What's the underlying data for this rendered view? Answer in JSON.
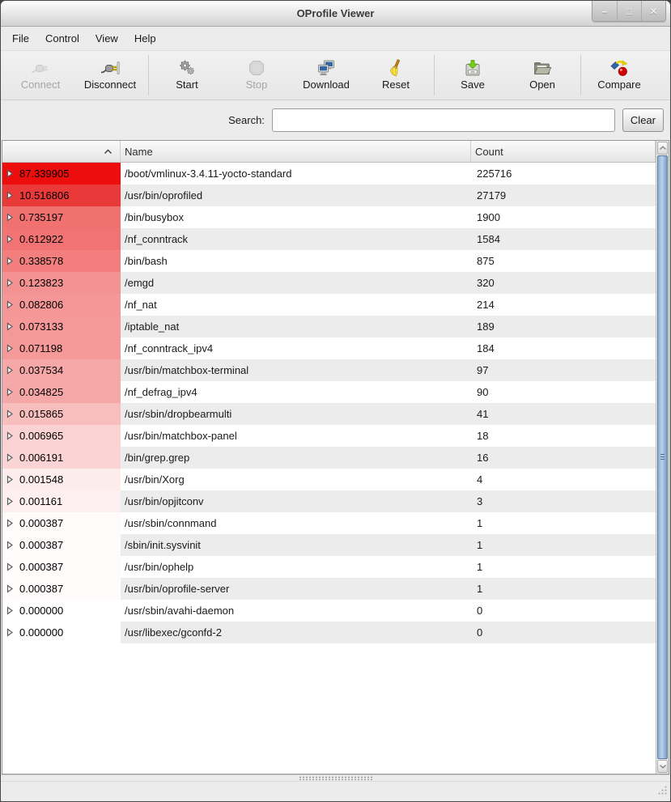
{
  "window": {
    "title": "OProfile Viewer",
    "controls": [
      {
        "name": "minimize",
        "glyph": "–"
      },
      {
        "name": "maximize",
        "glyph": "□"
      },
      {
        "name": "close",
        "glyph": "✕"
      }
    ]
  },
  "menu": {
    "items": [
      "File",
      "Control",
      "View",
      "Help"
    ]
  },
  "toolbar": {
    "groups": [
      [
        {
          "label": "Connect",
          "icon": "connect-plug-icon",
          "enabled": false
        },
        {
          "label": "Disconnect",
          "icon": "disconnect-plug-icon",
          "enabled": true
        }
      ],
      [
        {
          "label": "Start",
          "icon": "gears-icon",
          "enabled": true
        },
        {
          "label": "Stop",
          "icon": "stop-octagon-icon",
          "enabled": false
        },
        {
          "label": "Download",
          "icon": "computers-icon",
          "enabled": true
        },
        {
          "label": "Reset",
          "icon": "broom-icon",
          "enabled": true
        }
      ],
      [
        {
          "label": "Save",
          "icon": "save-drive-icon",
          "enabled": true
        },
        {
          "label": "Open",
          "icon": "open-folder-icon",
          "enabled": true
        }
      ],
      [
        {
          "label": "Compare",
          "icon": "compare-shapes-icon",
          "enabled": true
        }
      ]
    ]
  },
  "search": {
    "label": "Search:",
    "value": "",
    "clear_label": "Clear"
  },
  "table": {
    "columns": [
      "",
      "Name",
      "Count"
    ],
    "sort": {
      "column": 0,
      "direction": "ascending"
    },
    "rows": [
      {
        "pct": "87.339905",
        "name": "/boot/vmlinux-3.4.11-yocto-standard",
        "count": "225716",
        "color": "#ee0d0d"
      },
      {
        "pct": "10.516806",
        "name": "/usr/bin/oprofiled",
        "count": "27179",
        "color": "#ea3939"
      },
      {
        "pct": "0.735197",
        "name": "/bin/busybox",
        "count": "1900",
        "color": "#f17070"
      },
      {
        "pct": "0.612922",
        "name": "/nf_conntrack",
        "count": "1584",
        "color": "#f17373"
      },
      {
        "pct": "0.338578",
        "name": "/bin/bash",
        "count": "875",
        "color": "#f27e7e"
      },
      {
        "pct": "0.123823",
        "name": "/emgd",
        "count": "320",
        "color": "#f49292"
      },
      {
        "pct": "0.082806",
        "name": "/nf_nat",
        "count": "214",
        "color": "#f59797"
      },
      {
        "pct": "0.073133",
        "name": "/iptable_nat",
        "count": "189",
        "color": "#f59898"
      },
      {
        "pct": "0.071198",
        "name": "/nf_conntrack_ipv4",
        "count": "184",
        "color": "#f59999"
      },
      {
        "pct": "0.037534",
        "name": "/usr/bin/matchbox-terminal",
        "count": "97",
        "color": "#f6a7a7"
      },
      {
        "pct": "0.034825",
        "name": "/nf_defrag_ipv4",
        "count": "90",
        "color": "#f6a8a8"
      },
      {
        "pct": "0.015865",
        "name": "/usr/sbin/dropbearmulti",
        "count": "41",
        "color": "#f8bdbd"
      },
      {
        "pct": "0.006965",
        "name": "/usr/bin/matchbox-panel",
        "count": "18",
        "color": "#fad2d2"
      },
      {
        "pct": "0.006191",
        "name": "/bin/grep.grep",
        "count": "16",
        "color": "#fad4d4"
      },
      {
        "pct": "0.001548",
        "name": "/usr/bin/Xorg",
        "count": "4",
        "color": "#fdecec"
      },
      {
        "pct": "0.001161",
        "name": "/usr/bin/opjitconv",
        "count": "3",
        "color": "#fdefef"
      },
      {
        "pct": "0.000387",
        "name": "/usr/sbin/connmand",
        "count": "1",
        "color": "#fffbfb"
      },
      {
        "pct": "0.000387",
        "name": "/sbin/init.sysvinit",
        "count": "1",
        "color": "#fffbfb"
      },
      {
        "pct": "0.000387",
        "name": "/usr/bin/ophelp",
        "count": "1",
        "color": "#fffbfb"
      },
      {
        "pct": "0.000387",
        "name": "/usr/bin/oprofile-server",
        "count": "1",
        "color": "#fffbfb"
      },
      {
        "pct": "0.000000",
        "name": "/usr/sbin/avahi-daemon",
        "count": "0",
        "color": "#ffffff"
      },
      {
        "pct": "0.000000",
        "name": "/usr/libexec/gconfd-2",
        "count": "0",
        "color": "#ffffff"
      }
    ]
  },
  "colors": {
    "heat_max": "#ee0d0d",
    "zebra_stripe": "#ececec",
    "scrollbar_thumb": "#8fafd4",
    "window_background": "#ececec"
  }
}
